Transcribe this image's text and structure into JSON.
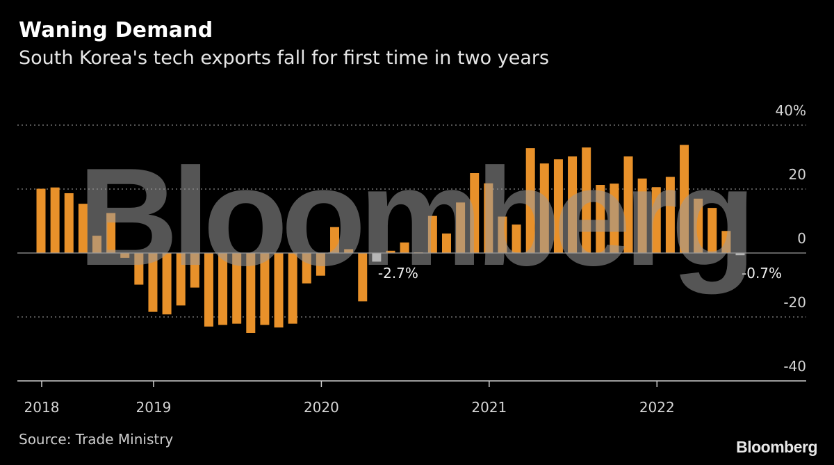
{
  "header": {
    "title": "Waning Demand",
    "subtitle": "South Korea's tech exports fall for first time in two years"
  },
  "footer": {
    "source": "Source: Trade Ministry",
    "logo": "Bloomberg"
  },
  "watermark": "Bloomberg",
  "colors": {
    "bar": "#e8912a",
    "highlight": "#d8d8d8",
    "background": "#000000",
    "grid": "#8a8a8a"
  },
  "chart_data": {
    "type": "bar",
    "title": "Waning Demand",
    "subtitle": "South Korea's tech exports fall for first time in two years",
    "xlabel": "",
    "ylabel": "",
    "ylim": [
      -40,
      40
    ],
    "y_ticks": [
      40,
      20,
      0,
      -20,
      -40
    ],
    "y_tick_labels": [
      "40%",
      "20",
      "0",
      "-20",
      "-40"
    ],
    "grid": true,
    "x_tick_labels": [
      {
        "category": "2018-05",
        "label": "2018"
      },
      {
        "category": "2019-01",
        "label": "2019"
      },
      {
        "category": "2020-01",
        "label": "2020"
      },
      {
        "category": "2021-01",
        "label": "2021"
      },
      {
        "category": "2022-01",
        "label": "2022"
      }
    ],
    "categories": [
      "2018-05",
      "2018-06",
      "2018-07",
      "2018-08",
      "2018-09",
      "2018-10",
      "2018-11",
      "2018-12",
      "2019-01",
      "2019-02",
      "2019-03",
      "2019-04",
      "2019-05",
      "2019-06",
      "2019-07",
      "2019-08",
      "2019-09",
      "2019-10",
      "2019-11",
      "2019-12",
      "2020-01",
      "2020-02",
      "2020-03",
      "2020-04",
      "2020-05",
      "2020-06",
      "2020-07",
      "2020-08",
      "2020-09",
      "2020-10",
      "2020-11",
      "2020-12",
      "2021-01",
      "2021-02",
      "2021-03",
      "2021-04",
      "2021-05",
      "2021-06",
      "2021-07",
      "2021-08",
      "2021-09",
      "2021-10",
      "2021-11",
      "2021-12",
      "2022-01",
      "2022-02",
      "2022-03",
      "2022-04",
      "2022-05",
      "2022-06",
      "2022-07"
    ],
    "values": [
      20.1,
      20.5,
      18.7,
      15.4,
      5.4,
      12.5,
      -1.5,
      -9.9,
      -18.4,
      -19.2,
      -16.4,
      -10.8,
      -23.0,
      -22.5,
      -22.1,
      -25.0,
      -22.5,
      -23.3,
      -22.1,
      -9.5,
      -7.1,
      8.1,
      1.2,
      -15.1,
      -2.7,
      0.7,
      3.3,
      0.2,
      11.6,
      6.1,
      15.8,
      25.0,
      21.8,
      11.4,
      8.9,
      32.8,
      28.0,
      29.3,
      30.2,
      33.0,
      21.3,
      21.7,
      30.2,
      23.3,
      20.6,
      23.8,
      33.8,
      17.0,
      14.1,
      6.9,
      -0.7
    ],
    "annotations": [
      {
        "category": "2020-05",
        "label": "-2.7%"
      },
      {
        "category": "2022-07",
        "label": "-0.7%"
      }
    ]
  }
}
